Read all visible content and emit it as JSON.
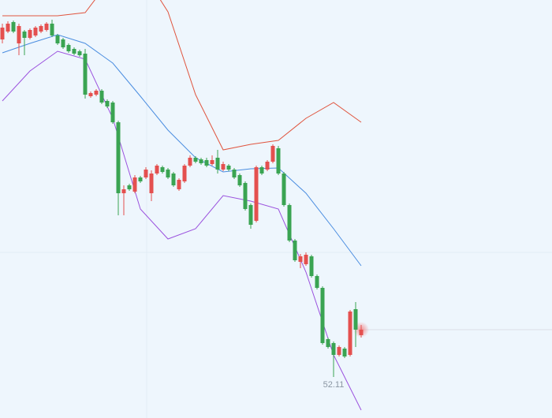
{
  "chart_data": {
    "type": "candlestick",
    "ylim": [
      50.81,
      64.06
    ],
    "up_color": "#e4504f",
    "down_color": "#3aa452",
    "open": [
      62.81,
      63.06,
      63.36,
      62.685,
      63.06,
      62.86,
      62.935,
      63.06,
      63.11,
      63.31,
      62.935,
      62.81,
      62.635,
      62.51,
      62.435,
      62.36,
      61.01,
      61.06,
      61.185,
      60.86,
      60.81,
      60.185,
      57.935,
      58.185,
      57.985,
      58.435,
      58.435,
      57.935,
      58.56,
      58.76,
      58.685,
      58.56,
      58.06,
      58.31,
      58.81,
      59.06,
      59.01,
      58.985,
      58.86,
      59.06,
      58.685,
      58.81,
      58.685,
      58.51,
      58.26,
      57.56,
      57.06,
      58.76,
      58.685,
      58.935,
      59.36,
      58.56,
      57.56,
      56.435,
      55.76,
      55.685,
      55.935,
      55.31,
      54.935,
      53.31,
      53.185,
      52.81,
      53.01,
      52.81,
      54.26,
      53.435
    ],
    "high": [
      63.31,
      63.385,
      63.41,
      63.31,
      63.11,
      63.16,
      63.235,
      63.285,
      63.36,
      63.435,
      62.985,
      62.86,
      62.685,
      62.56,
      62.485,
      62.51,
      61.16,
      61.235,
      61.235,
      60.91,
      60.86,
      60.235,
      58.185,
      58.235,
      58.51,
      58.485,
      58.76,
      58.66,
      58.86,
      58.81,
      58.735,
      58.61,
      58.41,
      58.86,
      59.135,
      59.11,
      59.06,
      59.06,
      59.135,
      59.31,
      58.935,
      58.86,
      58.735,
      58.56,
      58.31,
      57.61,
      58.81,
      58.81,
      58.985,
      59.485,
      59.435,
      58.61,
      57.61,
      56.485,
      56.01,
      56.06,
      55.985,
      55.36,
      54.985,
      53.36,
      53.235,
      53.11,
      53.06,
      54.235,
      54.485,
      53.76
    ],
    "low": [
      62.685,
      63.01,
      63.01,
      62.31,
      62.31,
      62.81,
      62.885,
      63.01,
      63.06,
      62.885,
      62.635,
      62.51,
      62.385,
      62.31,
      62.26,
      60.935,
      60.96,
      61.01,
      60.76,
      60.635,
      60.135,
      57.235,
      57.235,
      58.01,
      57.935,
      58.26,
      58.385,
      57.685,
      58.51,
      58.56,
      58.385,
      58.135,
      58.01,
      58.26,
      58.76,
      58.885,
      58.835,
      58.76,
      58.81,
      58.56,
      58.635,
      58.635,
      58.385,
      58.135,
      57.385,
      56.81,
      57.01,
      58.51,
      58.635,
      58.885,
      58.51,
      57.51,
      56.385,
      55.76,
      55.56,
      55.635,
      55.26,
      54.885,
      53.135,
      53.01,
      52.11,
      52.76,
      52.71,
      52.76,
      53.06,
      53.36
    ],
    "close": [
      63.185,
      63.31,
      63.06,
      63.235,
      62.86,
      63.11,
      63.185,
      63.235,
      63.31,
      62.935,
      62.685,
      62.56,
      62.435,
      62.36,
      62.31,
      61.06,
      61.11,
      61.185,
      60.81,
      60.685,
      60.185,
      57.935,
      58.06,
      58.06,
      58.435,
      58.31,
      58.685,
      58.56,
      58.81,
      58.61,
      58.435,
      58.185,
      58.36,
      58.81,
      59.06,
      58.935,
      58.885,
      58.81,
      58.985,
      58.685,
      58.86,
      58.685,
      58.435,
      58.185,
      57.435,
      56.935,
      58.76,
      58.56,
      58.935,
      59.435,
      58.56,
      57.56,
      56.435,
      55.81,
      55.935,
      55.985,
      55.31,
      54.935,
      53.185,
      53.06,
      52.81,
      53.06,
      52.76,
      54.185,
      53.61,
      53.61
    ],
    "bands": [
      {
        "color": "#e0553f",
        "x": [
          0,
          5,
          10,
          15,
          20,
          25,
          30,
          35,
          40,
          45,
          50,
          55,
          60,
          65
        ],
        "values": [
          63.56,
          63.56,
          63.56,
          63.66,
          64.81,
          65.06,
          63.685,
          61.06,
          59.31,
          59.485,
          59.61,
          60.31,
          60.81,
          60.185
        ]
      },
      {
        "color": "#4a8de0",
        "x": [
          0,
          5,
          10,
          15,
          20,
          25,
          30,
          35,
          40,
          45,
          50,
          55,
          60,
          65
        ],
        "values": [
          62.385,
          62.685,
          62.96,
          62.685,
          62.06,
          61.01,
          59.935,
          59.06,
          58.61,
          58.71,
          58.735,
          57.935,
          56.81,
          55.635
        ]
      },
      {
        "color": "#9b52de",
        "x": [
          0,
          5,
          10,
          15,
          20,
          25,
          30,
          35,
          40,
          45,
          50,
          55,
          60,
          65
        ],
        "values": [
          60.86,
          61.81,
          62.435,
          62.185,
          60.31,
          57.435,
          56.485,
          56.81,
          57.86,
          57.685,
          57.435,
          55.435,
          52.81,
          51.06
        ]
      }
    ],
    "low_label": "52.11"
  }
}
